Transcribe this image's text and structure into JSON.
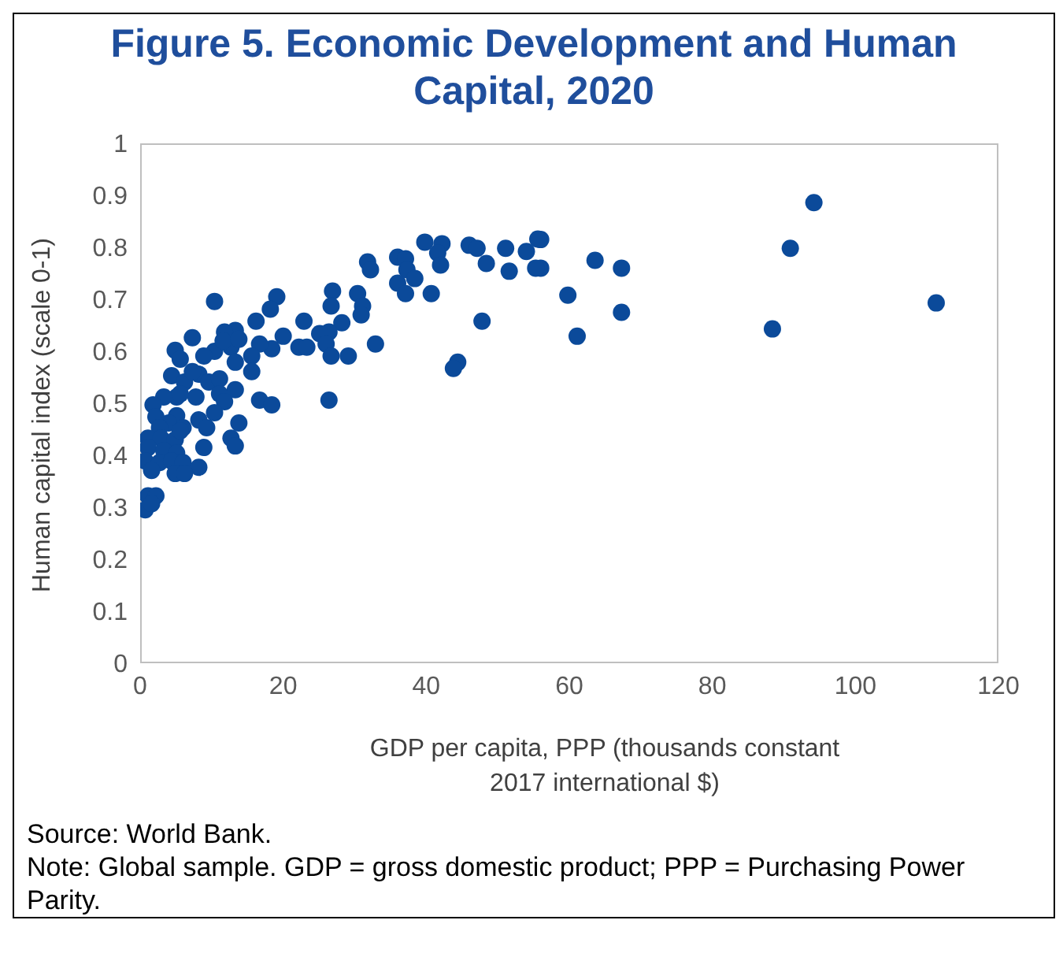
{
  "chart_data": {
    "type": "scatter",
    "title": "Figure 5. Economic Development and Human Capital, 2020",
    "xlabel": "GDP per capita, PPP (thousands constant 2017 international $)",
    "ylabel": "Human capital index (scale 0-1)",
    "marker": "circle",
    "grid": false,
    "xlim": [
      0,
      120
    ],
    "xticks": [
      0,
      20,
      40,
      60,
      80,
      100,
      120
    ],
    "ylim": [
      0,
      1
    ],
    "yticks": [
      0,
      0.1,
      0.2,
      0.3,
      0.4,
      0.5,
      0.6,
      0.7,
      0.8,
      0.9,
      1
    ],
    "series": [
      {
        "color": "#0b4a9a",
        "x": [
          94.2,
          90.9,
          111.3,
          88.4,
          63.6,
          67.3,
          59.8,
          67.3,
          61.1,
          56,
          56,
          39.8,
          42.2,
          46,
          47.1,
          51.1,
          54,
          55.6,
          31.8,
          36,
          37.1,
          41.6,
          42,
          32.2,
          37.3,
          38.4,
          36,
          37.1,
          40.7,
          48.4,
          51.6,
          55.3,
          47.8,
          44.4,
          43.8,
          26.9,
          26.7,
          30.4,
          31.1,
          30.9,
          28.2,
          32.9,
          26.4,
          25.1,
          26,
          26.7,
          29.1,
          22.9,
          22.2,
          23.3,
          26.4,
          19.1,
          18.2,
          16.2,
          20,
          18.4,
          16.7,
          16.7,
          18.4,
          13.8,
          13.3,
          15.6,
          10.4,
          7.3,
          4.9,
          5.6,
          11.8,
          10.4,
          12.7,
          13.3,
          15.6,
          4.4,
          6.2,
          8.2,
          9.6,
          11.1,
          13.3,
          11.1,
          7.8,
          5.1,
          3.3,
          1.8,
          11.8,
          10.4,
          5.1,
          2.2,
          4,
          6,
          8.2,
          9.3,
          2.7,
          1.1,
          2.9,
          4.9,
          5.6,
          8.9,
          12.7,
          13.3,
          1.1,
          3.3,
          5.1,
          0.7,
          2.7,
          4.4,
          6,
          8.2,
          1.6,
          4.9,
          6.2,
          1.1,
          2.2,
          0.7,
          1.6,
          8.9,
          11.6,
          13.8,
          7.3,
          5.6
        ],
        "values": [
          0.886,
          0.798,
          0.693,
          0.643,
          0.775,
          0.76,
          0.708,
          0.675,
          0.629,
          0.815,
          0.76,
          0.81,
          0.807,
          0.804,
          0.798,
          0.798,
          0.792,
          0.816,
          0.772,
          0.781,
          0.778,
          0.789,
          0.766,
          0.757,
          0.757,
          0.74,
          0.731,
          0.711,
          0.711,
          0.769,
          0.754,
          0.76,
          0.658,
          0.579,
          0.567,
          0.716,
          0.687,
          0.711,
          0.687,
          0.67,
          0.655,
          0.614,
          0.637,
          0.634,
          0.614,
          0.591,
          0.591,
          0.658,
          0.608,
          0.608,
          0.506,
          0.705,
          0.681,
          0.658,
          0.629,
          0.605,
          0.614,
          0.506,
          0.497,
          0.462,
          0.64,
          0.591,
          0.696,
          0.626,
          0.602,
          0.585,
          0.637,
          0.6,
          0.608,
          0.579,
          0.561,
          0.553,
          0.541,
          0.556,
          0.541,
          0.547,
          0.526,
          0.518,
          0.512,
          0.512,
          0.512,
          0.497,
          0.503,
          0.482,
          0.476,
          0.474,
          0.462,
          0.453,
          0.468,
          0.453,
          0.453,
          0.433,
          0.433,
          0.43,
          0.447,
          0.415,
          0.433,
          0.418,
          0.415,
          0.409,
          0.404,
          0.389,
          0.386,
          0.389,
          0.386,
          0.377,
          0.371,
          0.365,
          0.365,
          0.322,
          0.322,
          0.295,
          0.307,
          0.591,
          0.62,
          0.623,
          0.561,
          0.518
        ]
      }
    ],
    "annotations": [
      "Source: World Bank.",
      "Note: Global sample. GDP = gross domestic product; PPP = Purchasing Power Parity."
    ]
  }
}
